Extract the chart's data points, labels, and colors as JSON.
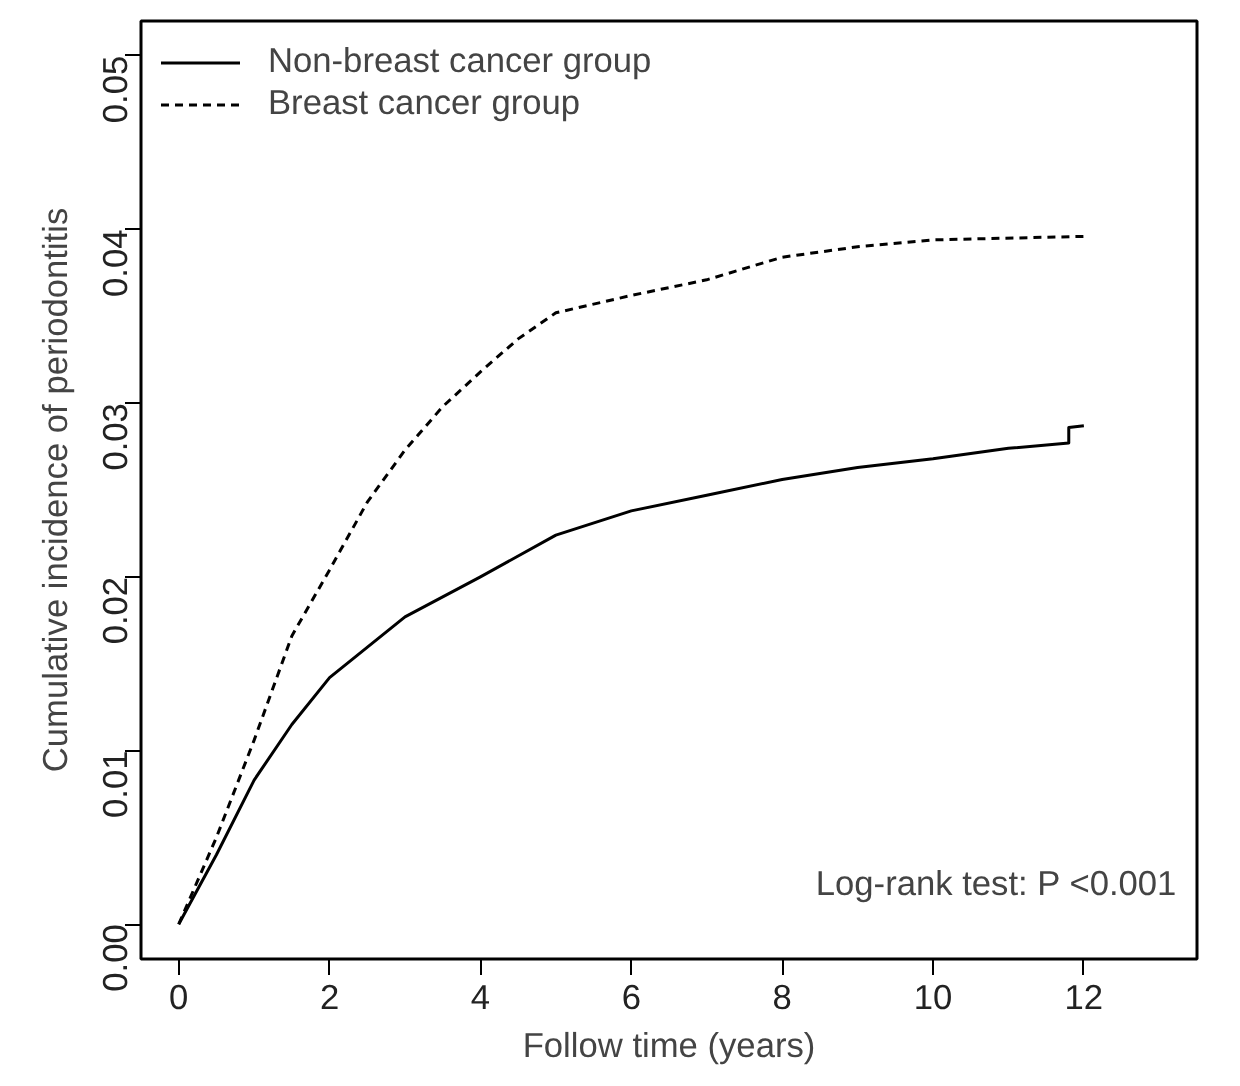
{
  "chart_data": {
    "type": "line",
    "xlabel": "Follow time (years)",
    "ylabel": "Cumulative incidence of periodontitis",
    "xlim": [
      -0.5,
      13.5
    ],
    "ylim": [
      -0.002,
      0.052
    ],
    "xticks": [
      0,
      2,
      4,
      6,
      8,
      10,
      12
    ],
    "yticks": [
      {
        "value": 0,
        "label": "0.00"
      },
      {
        "value": 0.01,
        "label": "0.01"
      },
      {
        "value": 0.02,
        "label": "0.02"
      },
      {
        "value": 0.03,
        "label": "0.03"
      },
      {
        "value": 0.04,
        "label": "0.04"
      },
      {
        "value": 0.05,
        "label": "0.05"
      }
    ],
    "grid": false,
    "legend": "top left",
    "marker": "none",
    "annotations": [
      "Log-rank test: P <0.001"
    ],
    "series": [
      {
        "name": "Non-breast cancer group",
        "color": "#000000",
        "line_style": "solid",
        "x": [
          0,
          0.5,
          1,
          1.5,
          2,
          3,
          4,
          5,
          6,
          7,
          8,
          9,
          10,
          11,
          11.8,
          11.8,
          12
        ],
        "values": [
          0,
          0.004,
          0.0083,
          0.0115,
          0.0142,
          0.0177,
          0.02,
          0.0224,
          0.0238,
          0.0247,
          0.0256,
          0.0263,
          0.0268,
          0.0274,
          0.0277,
          0.0286,
          0.0287
        ]
      },
      {
        "name": "Breast cancer group",
        "color": "#000000",
        "line_style": "dashed",
        "x": [
          0,
          0.5,
          1,
          1.5,
          2,
          2.5,
          3,
          3.5,
          4,
          4.5,
          5,
          6,
          7,
          8,
          9,
          10,
          12
        ],
        "values": [
          0,
          0.005,
          0.0106,
          0.0166,
          0.0204,
          0.0243,
          0.0273,
          0.0298,
          0.0318,
          0.0337,
          0.0352,
          0.0362,
          0.0371,
          0.0384,
          0.039,
          0.0394,
          0.0396
        ]
      }
    ]
  }
}
